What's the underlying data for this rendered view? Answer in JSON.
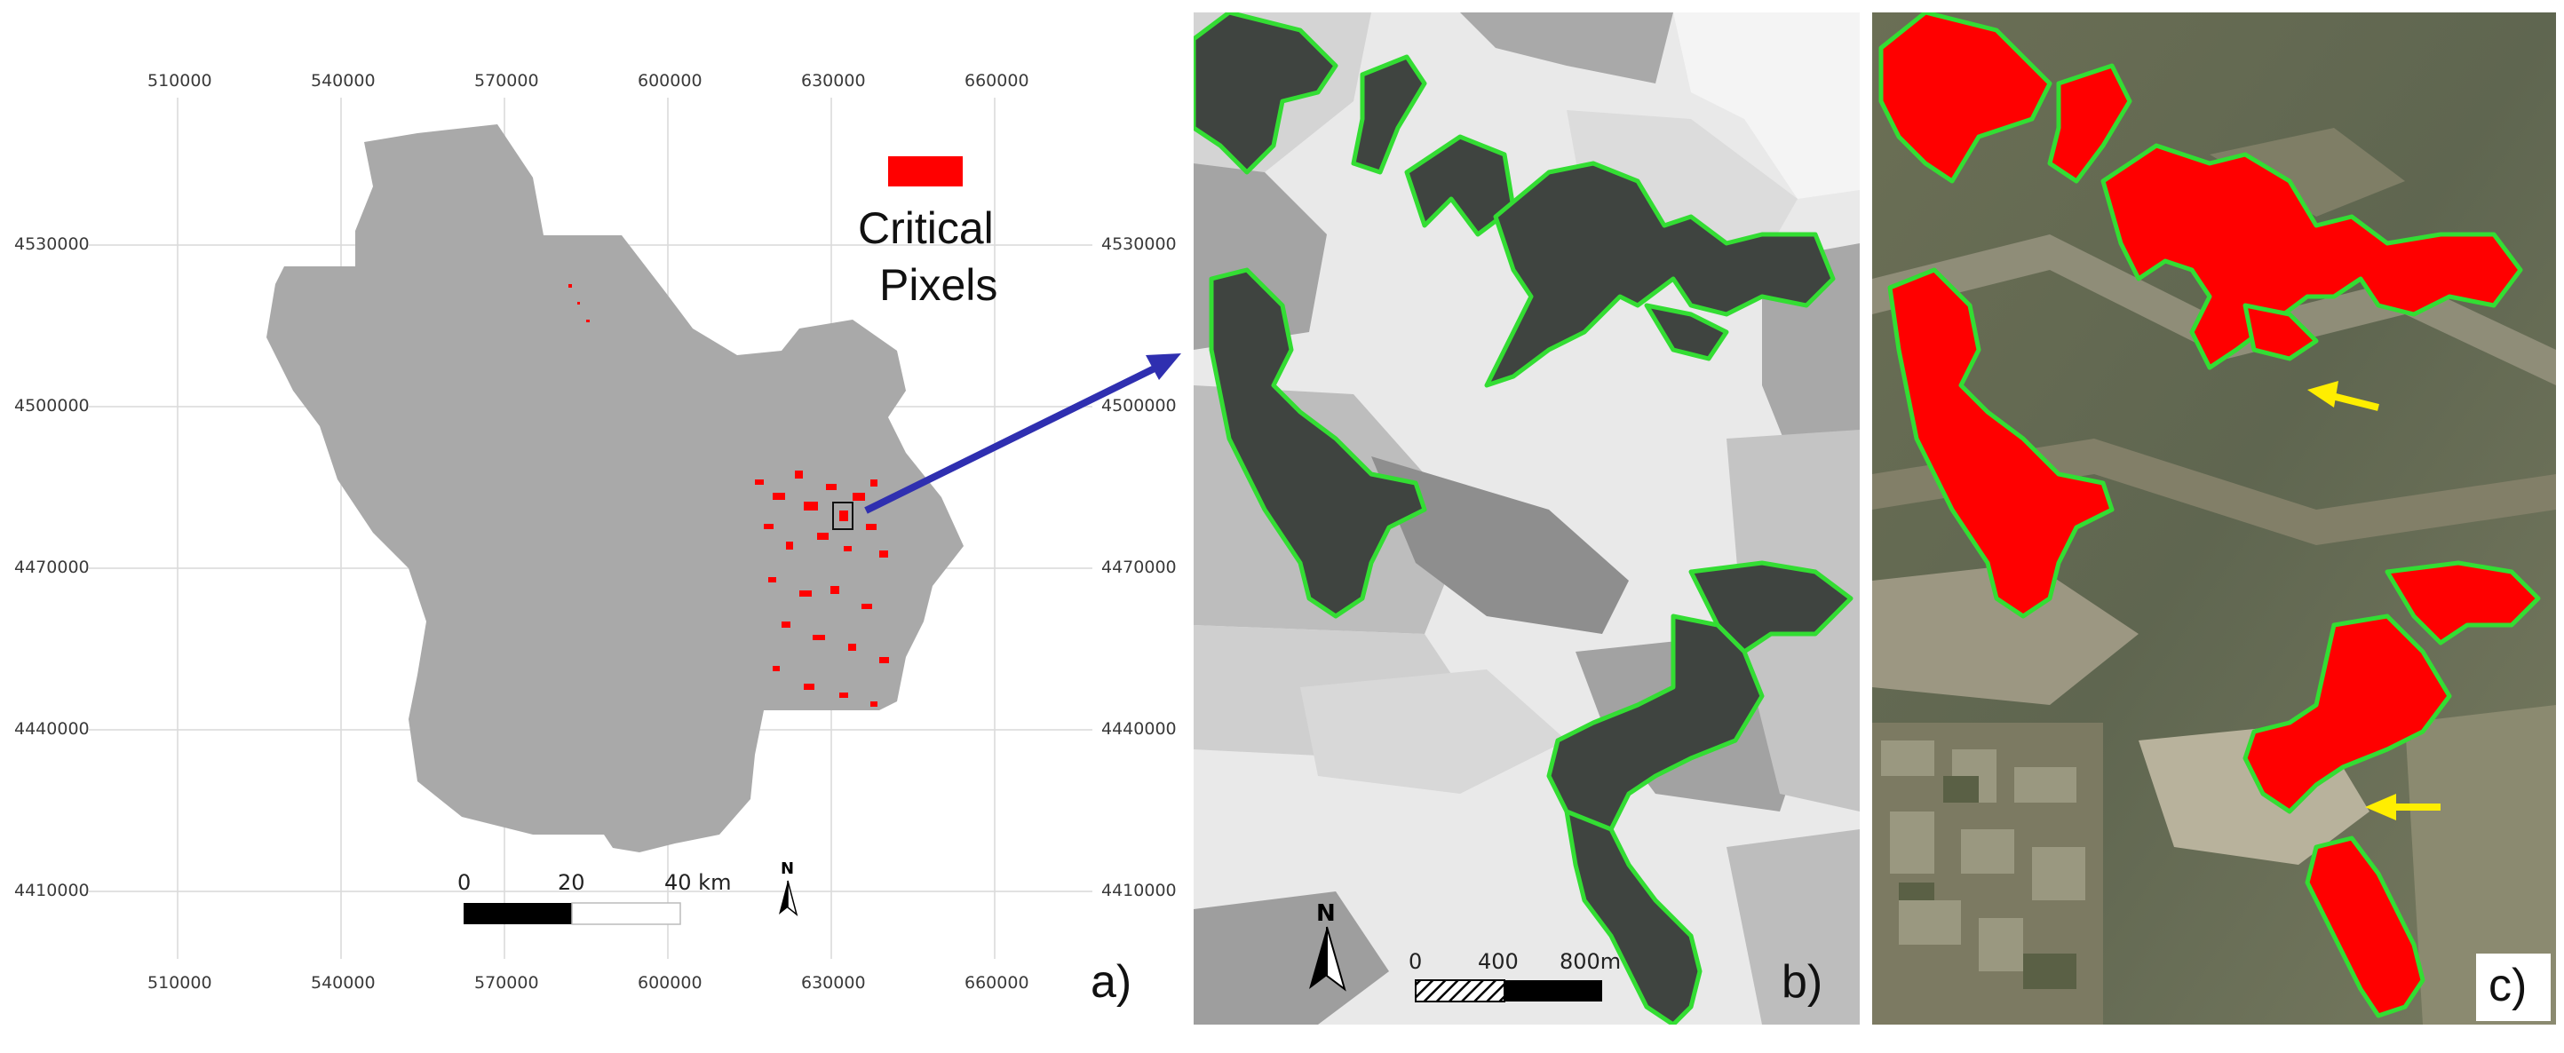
{
  "panel_a": {
    "x_ticks_top": [
      "510000",
      "540000",
      "570000",
      "600000",
      "630000",
      "660000"
    ],
    "x_ticks_bottom": [
      "510000",
      "540000",
      "570000",
      "600000",
      "630000",
      "660000"
    ],
    "y_ticks_left": [
      "4530000",
      "4500000",
      "4470000",
      "4440000",
      "4410000"
    ],
    "y_ticks_right": [
      "4530000",
      "4500000",
      "4470000",
      "4440000",
      "4410000"
    ],
    "legend_color": "#ff0000",
    "legend_line1": "Critical",
    "legend_line2": "Pixels",
    "scale_labels": [
      "0",
      "20",
      "40 km"
    ],
    "north_label": "N",
    "panel_letter": "a)"
  },
  "panel_b": {
    "north_label": "N",
    "scale_labels": [
      "0",
      "400",
      "800m"
    ],
    "panel_letter": "b)"
  },
  "panel_c": {
    "panel_letter": "c)"
  },
  "colors": {
    "region_fill": "#a9a9a9",
    "critical_red": "#ff0000",
    "outline_green": "#33dd33",
    "arrow_blue": "#2f2fb0",
    "arrow_yellow": "#ffee00"
  }
}
